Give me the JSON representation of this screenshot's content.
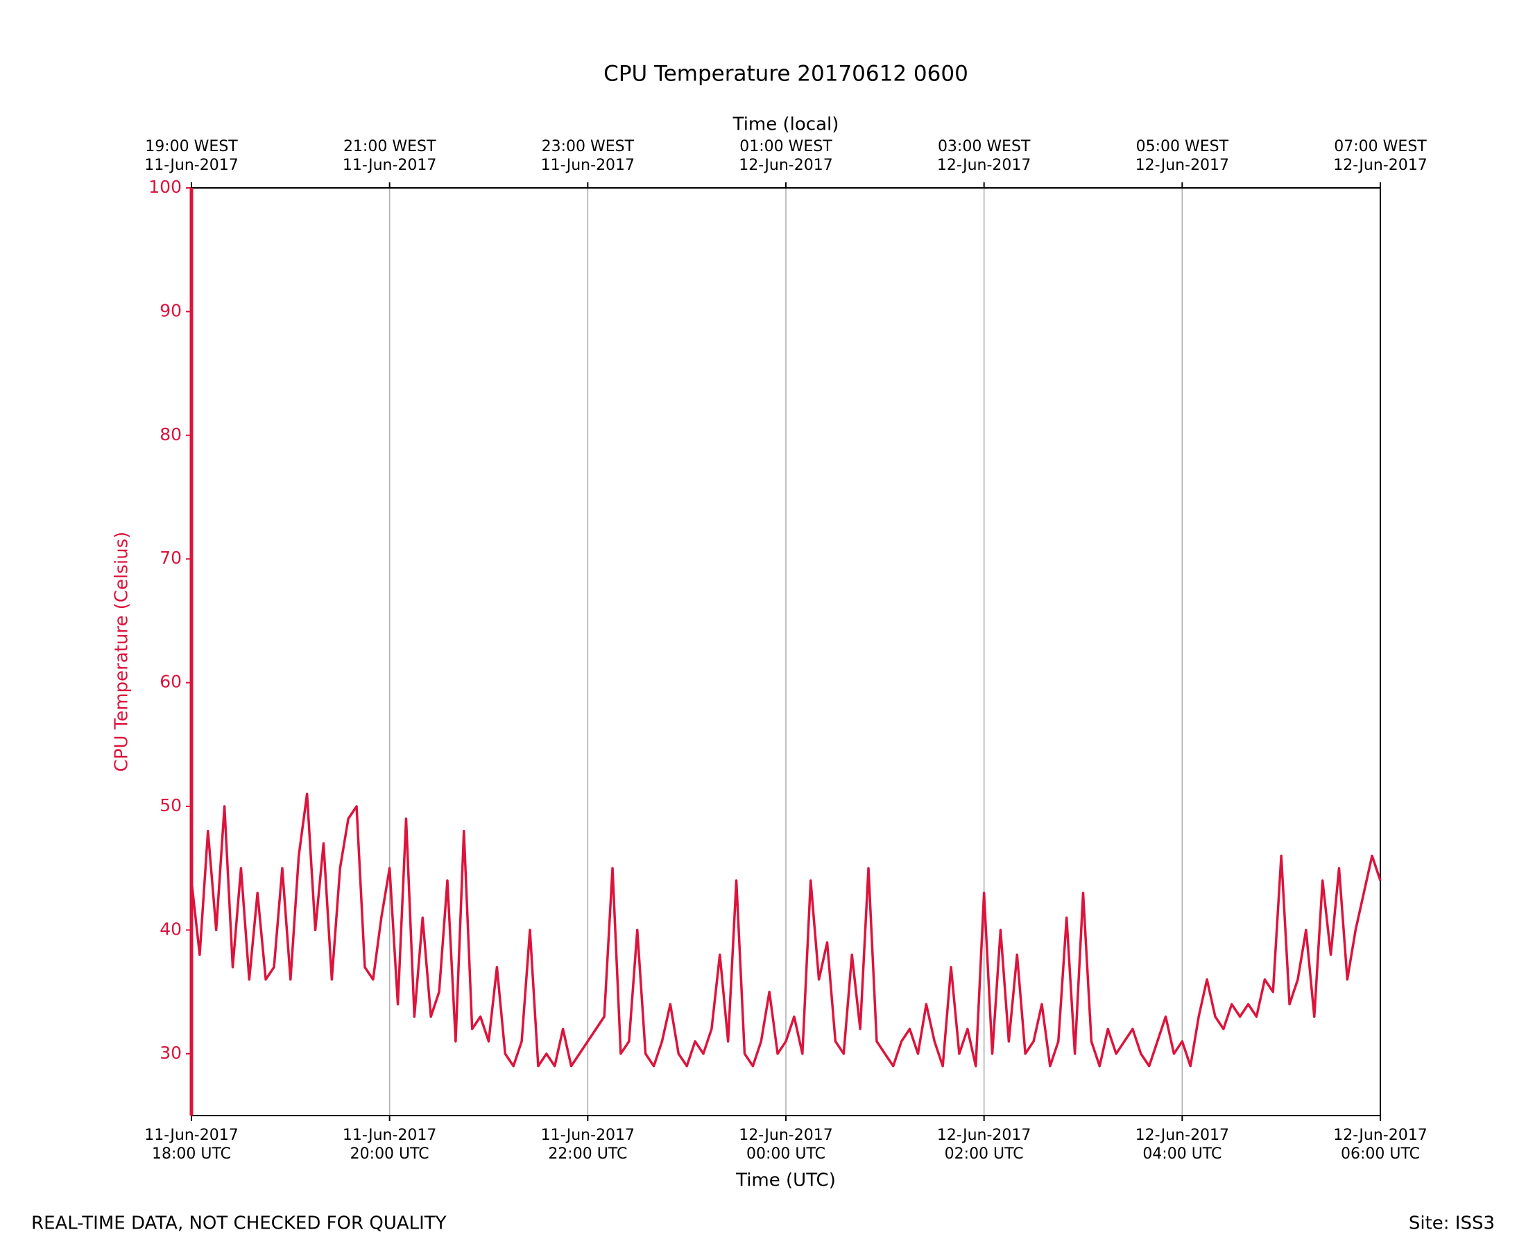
{
  "chart_data": {
    "type": "line",
    "title": "CPU Temperature 20170612 0600",
    "x_label": "Time (UTC)",
    "x2_label": "Time (local)",
    "y_label": "CPU Temperature (Celsius)",
    "footnote": "REAL-TIME DATA, NOT CHECKED FOR QUALITY",
    "site": "Site: ISS3",
    "color": "#dc143c",
    "grid": true,
    "xlim": [
      "2017-06-11 18:00",
      "2017-06-12 06:00"
    ],
    "ylim": [
      25,
      100
    ],
    "yticks": [
      30,
      40,
      50,
      60,
      70,
      80,
      90,
      100
    ],
    "xticks": [
      {
        "value": "2017-06-11 18:00",
        "label": [
          "11-Jun-2017",
          "18:00 UTC"
        ]
      },
      {
        "value": "2017-06-11 20:00",
        "label": [
          "11-Jun-2017",
          "20:00 UTC"
        ]
      },
      {
        "value": "2017-06-11 22:00",
        "label": [
          "11-Jun-2017",
          "22:00 UTC"
        ]
      },
      {
        "value": "2017-06-12 00:00",
        "label": [
          "12-Jun-2017",
          "00:00 UTC"
        ]
      },
      {
        "value": "2017-06-12 02:00",
        "label": [
          "12-Jun-2017",
          "02:00 UTC"
        ]
      },
      {
        "value": "2017-06-12 04:00",
        "label": [
          "12-Jun-2017",
          "04:00 UTC"
        ]
      },
      {
        "value": "2017-06-12 06:00",
        "label": [
          "12-Jun-2017",
          "06:00 UTC"
        ]
      }
    ],
    "x2ticks": [
      {
        "value": "2017-06-11 18:00",
        "label": [
          "19:00 WEST",
          "11-Jun-2017"
        ]
      },
      {
        "value": "2017-06-11 20:00",
        "label": [
          "21:00 WEST",
          "11-Jun-2017"
        ]
      },
      {
        "value": "2017-06-11 22:00",
        "label": [
          "23:00 WEST",
          "11-Jun-2017"
        ]
      },
      {
        "value": "2017-06-12 00:00",
        "label": [
          "01:00 WEST",
          "12-Jun-2017"
        ]
      },
      {
        "value": "2017-06-12 02:00",
        "label": [
          "03:00 WEST",
          "12-Jun-2017"
        ]
      },
      {
        "value": "2017-06-12 04:00",
        "label": [
          "05:00 WEST",
          "12-Jun-2017"
        ]
      },
      {
        "value": "2017-06-12 06:00",
        "label": [
          "07:00 WEST",
          "12-Jun-2017"
        ]
      }
    ],
    "x": [
      "2017-06-11 18:00",
      "2017-06-11 18:05",
      "2017-06-11 18:10",
      "2017-06-11 18:15",
      "2017-06-11 18:20",
      "2017-06-11 18:25",
      "2017-06-11 18:30",
      "2017-06-11 18:35",
      "2017-06-11 18:40",
      "2017-06-11 18:45",
      "2017-06-11 18:50",
      "2017-06-11 18:55",
      "2017-06-11 19:00",
      "2017-06-11 19:05",
      "2017-06-11 19:10",
      "2017-06-11 19:15",
      "2017-06-11 19:20",
      "2017-06-11 19:25",
      "2017-06-11 19:30",
      "2017-06-11 19:35",
      "2017-06-11 19:40",
      "2017-06-11 19:45",
      "2017-06-11 19:50",
      "2017-06-11 19:55",
      "2017-06-11 20:00",
      "2017-06-11 20:05",
      "2017-06-11 20:10",
      "2017-06-11 20:15",
      "2017-06-11 20:20",
      "2017-06-11 20:25",
      "2017-06-11 20:30",
      "2017-06-11 20:35",
      "2017-06-11 20:40",
      "2017-06-11 20:45",
      "2017-06-11 20:50",
      "2017-06-11 20:55",
      "2017-06-11 21:00",
      "2017-06-11 21:05",
      "2017-06-11 21:10",
      "2017-06-11 21:15",
      "2017-06-11 21:20",
      "2017-06-11 21:25",
      "2017-06-11 21:30",
      "2017-06-11 21:35",
      "2017-06-11 21:40",
      "2017-06-11 21:45",
      "2017-06-11 21:50",
      "2017-06-11 21:55",
      "2017-06-11 22:00",
      "2017-06-11 22:05",
      "2017-06-11 22:10",
      "2017-06-11 22:15",
      "2017-06-11 22:20",
      "2017-06-11 22:25",
      "2017-06-11 22:30",
      "2017-06-11 22:35",
      "2017-06-11 22:40",
      "2017-06-11 22:45",
      "2017-06-11 22:50",
      "2017-06-11 22:55",
      "2017-06-11 23:00",
      "2017-06-11 23:05",
      "2017-06-11 23:10",
      "2017-06-11 23:15",
      "2017-06-11 23:20",
      "2017-06-11 23:25",
      "2017-06-11 23:30",
      "2017-06-11 23:35",
      "2017-06-11 23:40",
      "2017-06-11 23:45",
      "2017-06-11 23:50",
      "2017-06-11 23:55",
      "2017-06-12 00:00",
      "2017-06-12 00:05",
      "2017-06-12 00:10",
      "2017-06-12 00:15",
      "2017-06-12 00:20",
      "2017-06-12 00:25",
      "2017-06-12 00:30",
      "2017-06-12 00:35",
      "2017-06-12 00:40",
      "2017-06-12 00:45",
      "2017-06-12 00:50",
      "2017-06-12 00:55",
      "2017-06-12 01:00",
      "2017-06-12 01:05",
      "2017-06-12 01:10",
      "2017-06-12 01:15",
      "2017-06-12 01:20",
      "2017-06-12 01:25",
      "2017-06-12 01:30",
      "2017-06-12 01:35",
      "2017-06-12 01:40",
      "2017-06-12 01:45",
      "2017-06-12 01:50",
      "2017-06-12 01:55",
      "2017-06-12 02:00",
      "2017-06-12 02:05",
      "2017-06-12 02:10",
      "2017-06-12 02:15",
      "2017-06-12 02:20",
      "2017-06-12 02:25",
      "2017-06-12 02:30",
      "2017-06-12 02:35",
      "2017-06-12 02:40",
      "2017-06-12 02:45",
      "2017-06-12 02:50",
      "2017-06-12 02:55",
      "2017-06-12 03:00",
      "2017-06-12 03:05",
      "2017-06-12 03:10",
      "2017-06-12 03:15",
      "2017-06-12 03:20",
      "2017-06-12 03:25",
      "2017-06-12 03:30",
      "2017-06-12 03:35",
      "2017-06-12 03:40",
      "2017-06-12 03:45",
      "2017-06-12 03:50",
      "2017-06-12 03:55",
      "2017-06-12 04:00",
      "2017-06-12 04:05",
      "2017-06-12 04:10",
      "2017-06-12 04:15",
      "2017-06-12 04:20",
      "2017-06-12 04:25",
      "2017-06-12 04:30",
      "2017-06-12 04:35",
      "2017-06-12 04:40",
      "2017-06-12 04:45",
      "2017-06-12 04:50",
      "2017-06-12 04:55",
      "2017-06-12 05:00",
      "2017-06-12 05:05",
      "2017-06-12 05:10",
      "2017-06-12 05:15",
      "2017-06-12 05:20",
      "2017-06-12 05:25",
      "2017-06-12 05:30",
      "2017-06-12 05:35",
      "2017-06-12 05:40",
      "2017-06-12 05:45",
      "2017-06-12 05:50",
      "2017-06-12 05:55",
      "2017-06-12 06:00"
    ],
    "values": [
      44,
      38,
      48,
      40,
      50,
      37,
      45,
      36,
      43,
      36,
      37,
      45,
      36,
      46,
      51,
      40,
      47,
      36,
      45,
      49,
      50,
      37,
      36,
      41,
      45,
      34,
      49,
      33,
      41,
      33,
      35,
      44,
      31,
      48,
      32,
      33,
      31,
      37,
      30,
      29,
      31,
      40,
      29,
      30,
      29,
      32,
      29,
      30,
      31,
      32,
      33,
      45,
      30,
      31,
      40,
      30,
      29,
      31,
      34,
      30,
      29,
      31,
      30,
      32,
      38,
      31,
      44,
      30,
      29,
      31,
      35,
      30,
      31,
      33,
      30,
      44,
      36,
      39,
      31,
      30,
      38,
      32,
      45,
      31,
      30,
      29,
      31,
      32,
      30,
      34,
      31,
      29,
      37,
      30,
      32,
      29,
      43,
      30,
      40,
      31,
      38,
      30,
      31,
      34,
      29,
      31,
      41,
      30,
      43,
      31,
      29,
      32,
      30,
      31,
      32,
      30,
      29,
      31,
      33,
      30,
      31,
      29,
      33,
      36,
      33,
      32,
      34,
      33,
      34,
      33,
      36,
      35,
      46,
      34,
      36,
      40,
      33,
      44,
      38,
      45,
      36,
      40,
      43,
      46,
      44
    ]
  }
}
